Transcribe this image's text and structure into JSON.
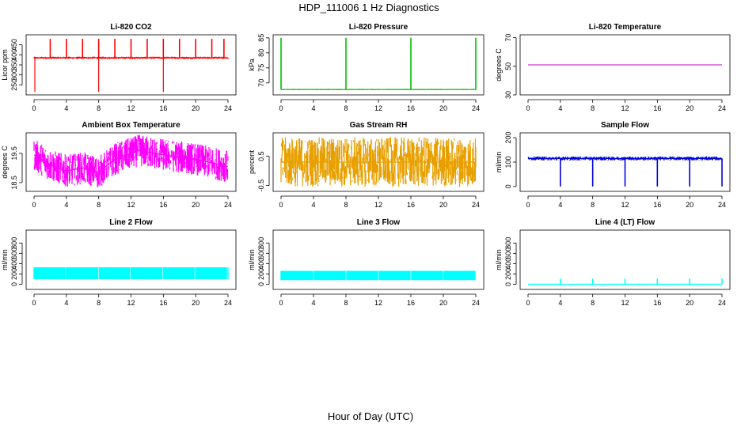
{
  "title": "HDP_111006  1 Hz Diagnostics",
  "xlabel": "Hour of Day (UTC)",
  "chart_data": [
    {
      "type": "line",
      "title": "Li-820 CO2",
      "ylabel": "Licor ppm",
      "color": "#ff0000",
      "x_ticks": [
        0,
        4,
        8,
        12,
        16,
        20,
        24
      ],
      "xlim": [
        0,
        24
      ],
      "y_ticks": [
        250,
        300,
        350,
        400,
        450
      ],
      "ylim": [
        200,
        500
      ],
      "pattern": {
        "base": 385,
        "noise": 6,
        "spike_hours": [
          2,
          4,
          6,
          8,
          10,
          12,
          14,
          16,
          18,
          20,
          22,
          23.5
        ],
        "spike_value": 480,
        "dip_hours": [
          0.1,
          8,
          16
        ],
        "dip_value": 215
      }
    },
    {
      "type": "line",
      "title": "Li-820 Pressure",
      "ylabel": "kPa",
      "color": "#00c000",
      "x_ticks": [
        0,
        4,
        8,
        12,
        16,
        20,
        24
      ],
      "xlim": [
        0,
        24
      ],
      "y_ticks": [
        70,
        75,
        80,
        85
      ],
      "ylim": [
        66,
        86
      ],
      "pattern": {
        "base": 67.8,
        "noise": 0.2,
        "spike_hours": [
          0,
          8,
          16,
          24
        ],
        "spike_value": 85
      }
    },
    {
      "type": "line",
      "title": "Li-820 Temperature",
      "ylabel": "degrees C",
      "color": "#cc33cc",
      "x_ticks": [
        0,
        4,
        8,
        12,
        16,
        20,
        24
      ],
      "xlim": [
        0,
        24
      ],
      "y_ticks": [
        30,
        50,
        70
      ],
      "ylim": [
        30,
        72
      ],
      "pattern": {
        "base": 51,
        "noise": 0
      }
    },
    {
      "type": "line",
      "title": "Ambient Box Temperature",
      "ylabel": "degrees C",
      "color": "#ff00ff",
      "x_ticks": [
        0,
        4,
        8,
        12,
        16,
        20,
        24
      ],
      "xlim": [
        0,
        24
      ],
      "y_ticks": [
        18.5,
        19.5
      ],
      "ylim": [
        18.2,
        20.2
      ],
      "pattern": {
        "base": 19.2,
        "noise": 0.55,
        "envelope": [
          [
            0,
            19.45
          ],
          [
            2,
            19.1
          ],
          [
            4,
            18.9
          ],
          [
            6,
            19.0
          ],
          [
            8,
            18.85
          ],
          [
            10,
            19.3
          ],
          [
            13,
            19.6
          ],
          [
            16,
            19.45
          ],
          [
            20,
            19.3
          ],
          [
            24,
            19.05
          ]
        ]
      }
    },
    {
      "type": "line",
      "title": "Gas Stream RH",
      "ylabel": "percent",
      "color": "#e8a000",
      "x_ticks": [
        0,
        4,
        8,
        12,
        16,
        20,
        24
      ],
      "xlim": [
        0,
        24
      ],
      "y_ticks": [
        -0.5,
        0.5
      ],
      "ylim": [
        -0.7,
        1.3
      ],
      "pattern": {
        "base": 0.3,
        "noise": 0.85
      }
    },
    {
      "type": "line",
      "title": "Sample Flow",
      "ylabel": "ml/min",
      "color": "#0000dd",
      "x_ticks": [
        0,
        4,
        8,
        12,
        16,
        20,
        24
      ],
      "xlim": [
        0,
        24
      ],
      "y_ticks": [
        0,
        100,
        200
      ],
      "ylim": [
        -20,
        220
      ],
      "pattern": {
        "base": 115,
        "noise": 8,
        "spike_hours": [
          4,
          8,
          12,
          16,
          20,
          24
        ],
        "spike_value": 0
      }
    },
    {
      "type": "area",
      "title": "Line 2 Flow",
      "ylabel": "ml/min",
      "color": "#00ffff",
      "x_ticks": [
        0,
        4,
        8,
        12,
        16,
        20,
        24
      ],
      "xlim": [
        0,
        24
      ],
      "y_ticks": [
        0,
        200,
        400,
        600,
        800
      ],
      "ylim": [
        -100,
        1050
      ],
      "pattern": {
        "low": 100,
        "high": 330,
        "gap_hours": [
          3.9,
          8,
          11.9,
          15.9,
          19.9,
          23.9
        ]
      }
    },
    {
      "type": "area",
      "title": "Line 3 Flow",
      "ylabel": "ml/min",
      "color": "#00ffff",
      "x_ticks": [
        0,
        4,
        8,
        12,
        16,
        20,
        24
      ],
      "xlim": [
        0,
        24
      ],
      "y_ticks": [
        0,
        200,
        400,
        600,
        800
      ],
      "ylim": [
        -100,
        1050
      ],
      "pattern": {
        "low": 80,
        "high": 260,
        "gap_hours": [
          4,
          8,
          12,
          16,
          20,
          24
        ]
      }
    },
    {
      "type": "line",
      "title": "Line 4 (LT) Flow",
      "ylabel": "ml/min",
      "color": "#00ffff",
      "x_ticks": [
        0,
        4,
        8,
        12,
        16,
        20,
        24
      ],
      "xlim": [
        0,
        24
      ],
      "y_ticks": [
        0,
        200,
        400,
        600,
        800
      ],
      "ylim": [
        -100,
        1050
      ],
      "pattern": {
        "base": 0,
        "noise": 0,
        "spike_hours": [
          4,
          8,
          12,
          16,
          20,
          24
        ],
        "spike_value": 110
      }
    }
  ]
}
